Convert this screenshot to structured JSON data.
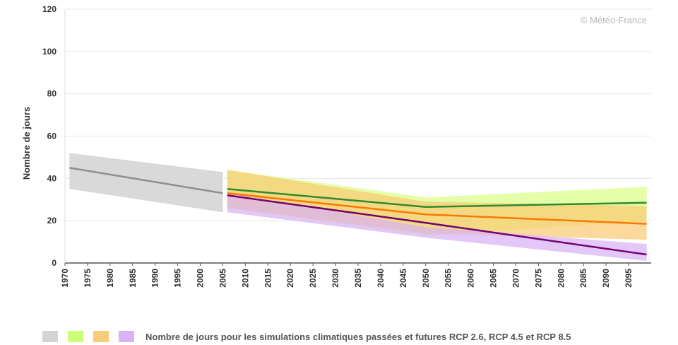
{
  "chart_data": {
    "type": "line",
    "ylabel": "Nombre de jours",
    "xlabel": "",
    "ylim": [
      0,
      120
    ],
    "xlim": [
      1970,
      2100
    ],
    "yticks": [
      0,
      20,
      40,
      60,
      80,
      100,
      120
    ],
    "xticks": [
      1970,
      1975,
      1980,
      1985,
      1990,
      1995,
      2000,
      2005,
      2010,
      2015,
      2020,
      2025,
      2030,
      2035,
      2040,
      2045,
      2050,
      2055,
      2060,
      2065,
      2070,
      2075,
      2080,
      2085,
      2090,
      2095
    ],
    "grid": "horizontal",
    "credit": "© Météo-France",
    "legend_text": "Nombre de jours pour les simulations climatiques passées et futures RCP 2.6, RCP 4.5 et RCP 8.5",
    "legend_colors": [
      "#d4d4d4",
      "#ccff77",
      "#f8cd7a",
      "#d6b4f6"
    ],
    "bands": [
      {
        "color": "#d9d9d9",
        "x": [
          1971,
          2005
        ],
        "upper": [
          52,
          43
        ],
        "lower": [
          35,
          24
        ]
      },
      {
        "color": "#d9ff86",
        "x": [
          2006,
          2050,
          2099
        ],
        "upper": [
          44,
          31,
          36
        ],
        "lower": [
          26,
          13,
          20
        ]
      },
      {
        "color": "#f8ca73",
        "x": [
          2006,
          2050,
          2099
        ],
        "upper": [
          44,
          29,
          27
        ],
        "lower": [
          26,
          14,
          11
        ]
      },
      {
        "color": "#d8b1f5",
        "x": [
          2006,
          2050,
          2099
        ],
        "upper": [
          33,
          17,
          9
        ],
        "lower": [
          24,
          12,
          1
        ]
      }
    ],
    "series": [
      {
        "color": "#8f8f8f",
        "x": [
          1971,
          2005
        ],
        "y": [
          45,
          33
        ]
      },
      {
        "color": "#2f8a2f",
        "x": [
          2006,
          2050,
          2099
        ],
        "y": [
          35,
          26.5,
          28.5
        ]
      },
      {
        "color": "#ff7700",
        "x": [
          2006,
          2050,
          2099
        ],
        "y": [
          33,
          23,
          18.5
        ]
      },
      {
        "color": "#740074",
        "x": [
          2006,
          2050,
          2099
        ],
        "y": [
          32,
          19,
          4
        ]
      }
    ]
  }
}
